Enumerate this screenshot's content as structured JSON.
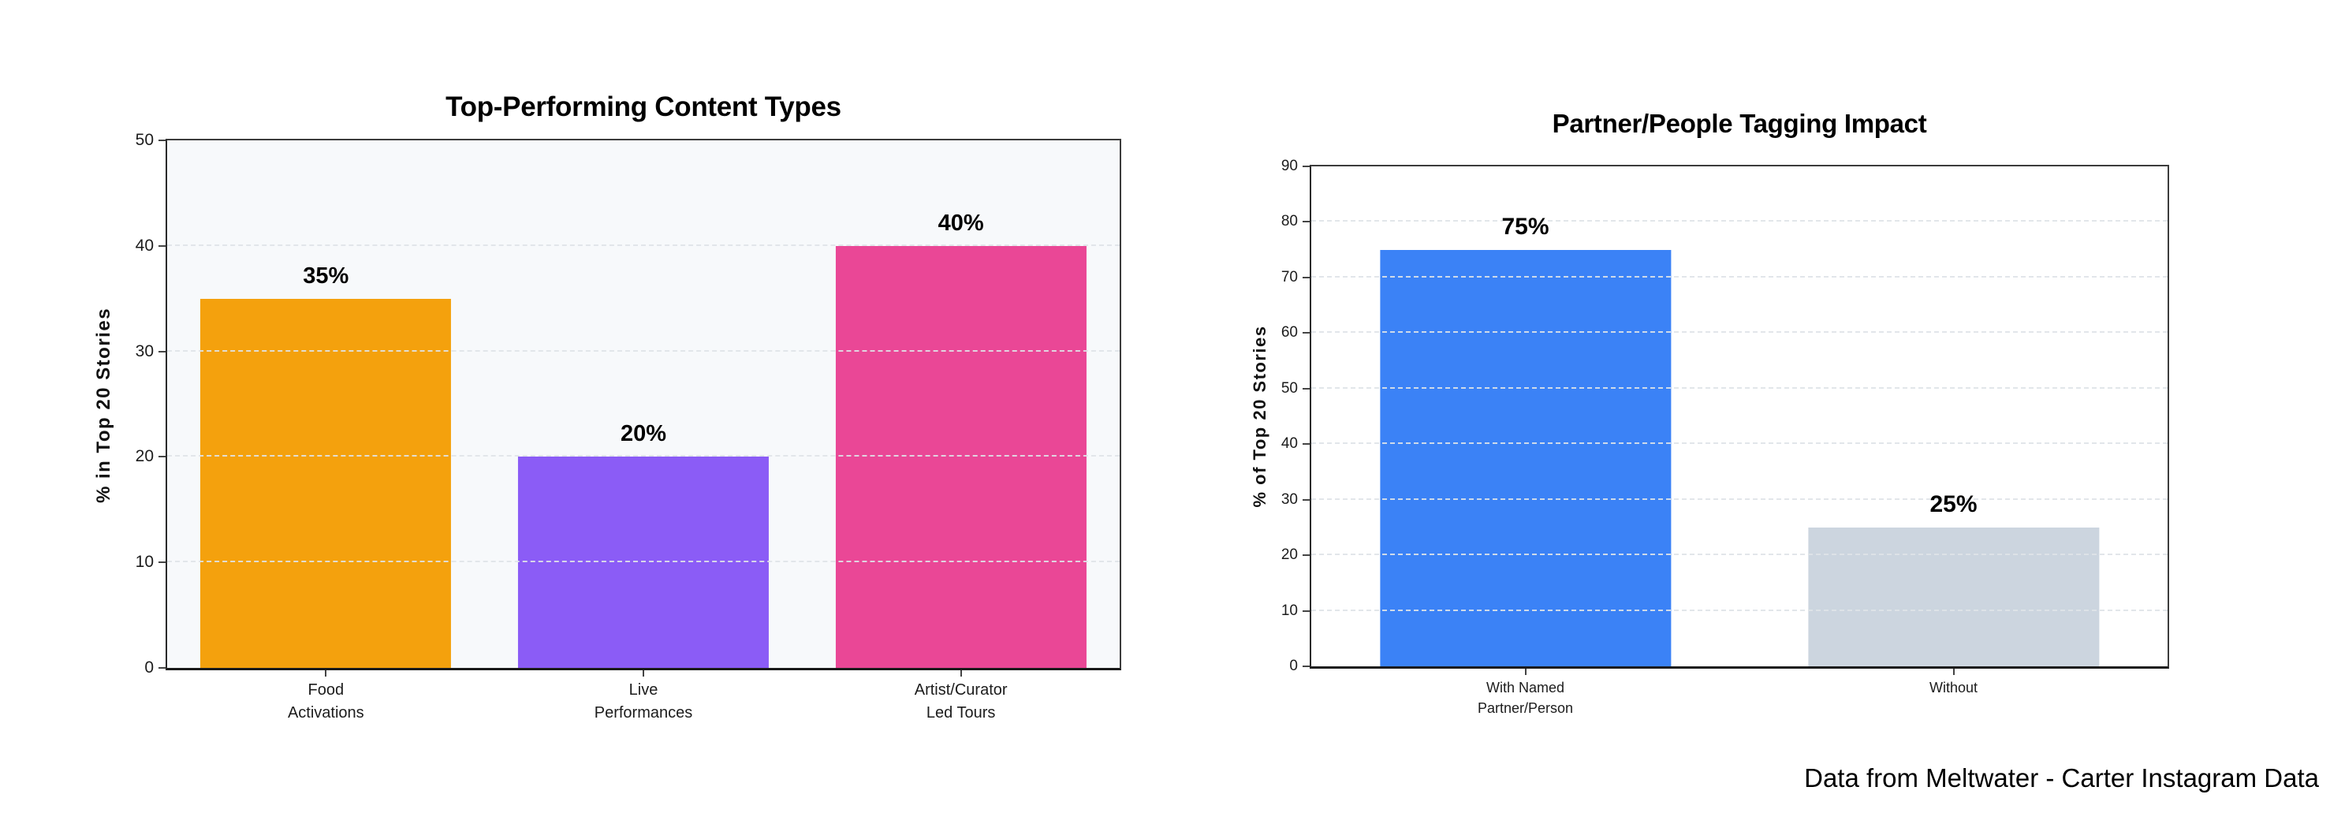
{
  "page": {
    "background": "#ffffff",
    "footer": "Data from Meltwater - Carter Instagram Data"
  },
  "chart_data": [
    {
      "type": "bar",
      "title": "Top-Performing Content Types",
      "ylabel": "% in Top 20 Stories",
      "categories": [
        "Food\nActivations",
        "Live\nPerformances",
        "Artist/Curator\nLed Tours"
      ],
      "values": [
        35,
        20,
        40
      ],
      "value_labels": [
        "35%",
        "20%",
        "40%"
      ],
      "bar_colors": [
        "#F4A10D",
        "#8B5CF6",
        "#EA4796"
      ],
      "ylim": [
        0,
        50
      ],
      "yticks": [
        0,
        10,
        20,
        30,
        40,
        50
      ],
      "grid": "horizontal dashed, drawn over bars",
      "legend": "none",
      "plot_bg": "#F7F9FB",
      "bar_width_frac": 0.79
    },
    {
      "type": "bar",
      "title": "Partner/People Tagging Impact",
      "ylabel": "% of Top 20 Stories",
      "categories": [
        "With Named\nPartner/Person",
        "Without"
      ],
      "values": [
        75,
        25
      ],
      "value_labels": [
        "75%",
        "25%"
      ],
      "bar_colors": [
        "#3B82F6",
        "#CCD5DF"
      ],
      "ylim": [
        0,
        90
      ],
      "yticks": [
        0,
        10,
        20,
        30,
        40,
        50,
        60,
        70,
        80,
        90
      ],
      "grid": "horizontal dashed, drawn over bars",
      "legend": "none",
      "plot_bg": "#FFFFFF",
      "bar_width_frac": 0.68
    }
  ]
}
